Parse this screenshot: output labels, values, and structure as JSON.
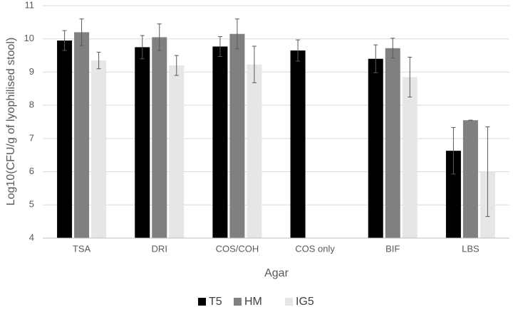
{
  "chart_data": {
    "type": "bar",
    "x_label": "Agar",
    "y_label": "Log10(CFU/g of lyophilised stool)",
    "categories": [
      "TSA",
      "DRI",
      "COS/COH",
      "COS only",
      "BIF",
      "LBS"
    ],
    "series": [
      {
        "name": "T5",
        "color": "#000000",
        "values": [
          9.95,
          9.75,
          9.77,
          9.65,
          9.4,
          6.63
        ],
        "errors": [
          0.3,
          0.35,
          0.3,
          0.32,
          0.42,
          0.7
        ]
      },
      {
        "name": "HM",
        "color": "#808080",
        "values": [
          10.2,
          10.05,
          10.15,
          null,
          9.72,
          7.55
        ],
        "errors": [
          0.4,
          0.4,
          0.45,
          null,
          0.3,
          0
        ]
      },
      {
        "name": "IG5",
        "color": "#e6e6e6",
        "values": [
          9.35,
          9.2,
          9.23,
          null,
          8.85,
          6.0
        ],
        "errors": [
          0.25,
          0.3,
          0.55,
          null,
          0.6,
          1.35
        ]
      }
    ],
    "ylim": [
      4,
      11
    ],
    "yticks": [
      4,
      5,
      6,
      7,
      8,
      9,
      10,
      11
    ],
    "grid": true,
    "legend": "bottom"
  }
}
